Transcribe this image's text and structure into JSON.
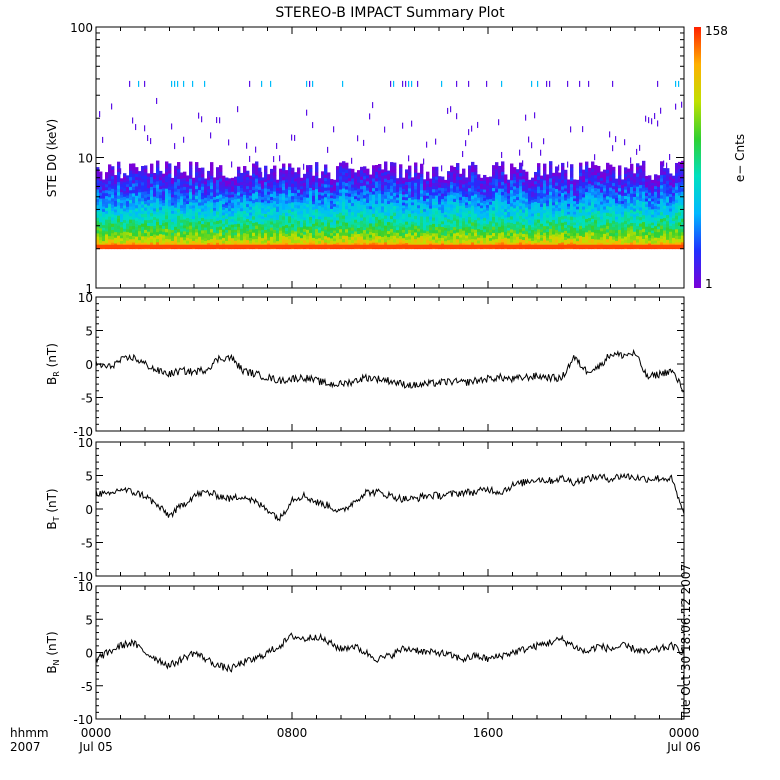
{
  "title": "STEREO-B IMPACT Summary Plot",
  "footer": {
    "left_top": "hhmm",
    "left_bottom": "2007",
    "time_ticks": [
      "0000",
      "0800",
      "1600",
      "0000"
    ],
    "date_ticks": [
      "Jul 05",
      "",
      "",
      "Jul 06"
    ],
    "timestamp": "Tue Oct 30 18:06:12 2007"
  },
  "colorbar": {
    "label": "e− Cnts",
    "max_label": "158",
    "min_label": "1",
    "range": [
      1,
      158
    ],
    "colors": [
      "#7a00d8",
      "#2030ff",
      "#00b8ff",
      "#00e0c0",
      "#30d030",
      "#c0e000",
      "#ffb000",
      "#ff2000"
    ]
  },
  "chart_data": [
    {
      "type": "heatmap",
      "name": "STE D0",
      "ylabel": "STE D0 (keV)",
      "yscale": "log",
      "ylim": [
        1,
        100
      ],
      "ytick_labels": [
        "1",
        "10",
        "100"
      ],
      "xlim_hours": [
        0,
        24
      ],
      "description_values": {
        "dense_band_keV": [
          2,
          8
        ],
        "peak_energy_keV": 2,
        "sparse_row_keV": 36
      }
    },
    {
      "type": "line",
      "name": "BR",
      "ylabel_main": "B",
      "ylabel_sub": "R",
      "ylabel_unit": "(nT)",
      "ylim": [
        -10,
        10
      ],
      "ytick_labels": [
        "-10",
        "-5",
        "0",
        "5",
        "10"
      ],
      "x_hours": [
        0,
        0.5,
        1,
        1.5,
        2,
        2.5,
        3,
        3.5,
        4,
        4.5,
        5,
        5.5,
        6,
        6.5,
        7,
        7.5,
        8,
        8.5,
        9,
        9.5,
        10,
        10.5,
        11,
        11.5,
        12,
        12.5,
        13,
        13.5,
        14,
        14.5,
        15,
        15.5,
        16,
        16.5,
        17,
        17.5,
        18,
        18.5,
        19,
        19.5,
        20,
        20.5,
        21,
        21.5,
        22,
        22.5,
        23,
        23.5,
        24
      ],
      "values": [
        0,
        -0.5,
        0.5,
        1,
        0,
        -1,
        -1.5,
        -1,
        -1.2,
        -0.8,
        0.8,
        1,
        -1,
        -1.5,
        -2,
        -2.5,
        -2.2,
        -2,
        -2.5,
        -3,
        -3,
        -2.6,
        -2,
        -2.2,
        -2.5,
        -3,
        -3.2,
        -3,
        -2.8,
        -2.6,
        -2.8,
        -2.5,
        -2.2,
        -2,
        -2.3,
        -2,
        -1.8,
        -2,
        -2.2,
        1,
        -1,
        -0.5,
        1.5,
        1.3,
        1.6,
        -2,
        -1.5,
        -1,
        -4
      ]
    },
    {
      "type": "line",
      "name": "BT",
      "ylabel_main": "B",
      "ylabel_sub": "T",
      "ylabel_unit": "(nT)",
      "ylim": [
        -10,
        10
      ],
      "ytick_labels": [
        "-10",
        "-5",
        "0",
        "5",
        "10"
      ],
      "x_hours": [
        0,
        0.5,
        1,
        1.5,
        2,
        2.5,
        3,
        3.5,
        4,
        4.5,
        5,
        5.5,
        6,
        6.5,
        7,
        7.5,
        8,
        8.5,
        9,
        9.5,
        10,
        10.5,
        11,
        11.5,
        12,
        12.5,
        13,
        13.5,
        14,
        14.5,
        15,
        15.5,
        16,
        16.5,
        17,
        17.5,
        18,
        18.5,
        19,
        19.5,
        20,
        20.5,
        21,
        21.5,
        22,
        22.5,
        23,
        23.5,
        24
      ],
      "values": [
        2.5,
        2,
        3,
        2.5,
        2,
        0.5,
        -1,
        0.5,
        2,
        2.5,
        2,
        1.5,
        2,
        1,
        0,
        -1.5,
        1.5,
        2,
        1,
        0.5,
        -0.5,
        1,
        2.5,
        2.5,
        2,
        1.5,
        1.5,
        2,
        2,
        2.2,
        2.5,
        2.5,
        3,
        2.5,
        3.5,
        4,
        4.5,
        4.2,
        4.6,
        4,
        4.5,
        4.8,
        4.5,
        5,
        4.7,
        4.5,
        4.6,
        4.5,
        -1
      ]
    },
    {
      "type": "line",
      "name": "BN",
      "ylabel_main": "B",
      "ylabel_sub": "N",
      "ylabel_unit": "(nT)",
      "ylim": [
        -10,
        10
      ],
      "ytick_labels": [
        "-10",
        "-5",
        "0",
        "5",
        "10"
      ],
      "x_hours": [
        0,
        0.5,
        1,
        1.5,
        2,
        2.5,
        3,
        3.5,
        4,
        4.5,
        5,
        5.5,
        6,
        6.5,
        7,
        7.5,
        8,
        8.5,
        9,
        9.5,
        10,
        10.5,
        11,
        11.5,
        12,
        12.5,
        13,
        13.5,
        14,
        14.5,
        15,
        15.5,
        16,
        16.5,
        17,
        17.5,
        18,
        18.5,
        19,
        19.5,
        20,
        20.5,
        21,
        21.5,
        22,
        22.5,
        23,
        23.5,
        24
      ],
      "values": [
        -1,
        0,
        1,
        1.5,
        0,
        -1,
        -2,
        -1,
        0,
        -1,
        -2,
        -2.5,
        -1.5,
        -1,
        0,
        1,
        2.5,
        2,
        2.5,
        1.5,
        0.5,
        1,
        0,
        -1,
        -0.5,
        0.5,
        0.5,
        0,
        0,
        -0.5,
        -1,
        -0.5,
        -1,
        -0.5,
        0,
        0.5,
        1,
        1.5,
        2,
        1,
        0,
        1,
        0.5,
        1,
        0.5,
        0,
        0.5,
        1,
        0
      ]
    }
  ]
}
